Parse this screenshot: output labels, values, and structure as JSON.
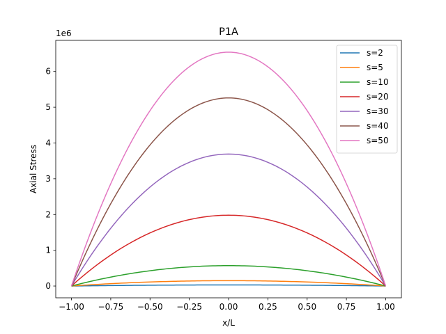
{
  "chart_data": {
    "type": "line",
    "title": "P1A",
    "xlabel": "x/L",
    "ylabel": "Axial Stress",
    "offset_text": "1e6",
    "y_scale": 1000000,
    "xlim": [
      -1.1,
      1.1
    ],
    "ylim": [
      -0.33,
      6.87
    ],
    "xticks": [
      -1.0,
      -0.75,
      -0.5,
      -0.25,
      0.0,
      0.25,
      0.5,
      0.75,
      1.0
    ],
    "xtick_labels": [
      "−1.00",
      "−0.75",
      "−0.50",
      "−0.25",
      "0.00",
      "0.25",
      "0.50",
      "0.75",
      "1.00"
    ],
    "yticks": [
      0,
      1,
      2,
      3,
      4,
      5,
      6
    ],
    "ytick_labels": [
      "0",
      "1",
      "2",
      "3",
      "4",
      "5",
      "6"
    ],
    "grid": false,
    "legend_position": "top-right",
    "curve_shape": "parabola: y = peak * (1 - x^2) for x in [-1, 1]",
    "series": [
      {
        "name": "s=2",
        "peak": 0.03,
        "color": "#1f77b4"
      },
      {
        "name": "s=5",
        "peak": 0.15,
        "color": "#ff7f0e"
      },
      {
        "name": "s=10",
        "peak": 0.57,
        "color": "#2ca02c"
      },
      {
        "name": "s=20",
        "peak": 1.98,
        "color": "#d62728"
      },
      {
        "name": "s=30",
        "peak": 3.69,
        "color": "#9467bd"
      },
      {
        "name": "s=40",
        "peak": 5.26,
        "color": "#8c564b"
      },
      {
        "name": "s=50",
        "peak": 6.54,
        "color": "#e377c2"
      }
    ]
  }
}
